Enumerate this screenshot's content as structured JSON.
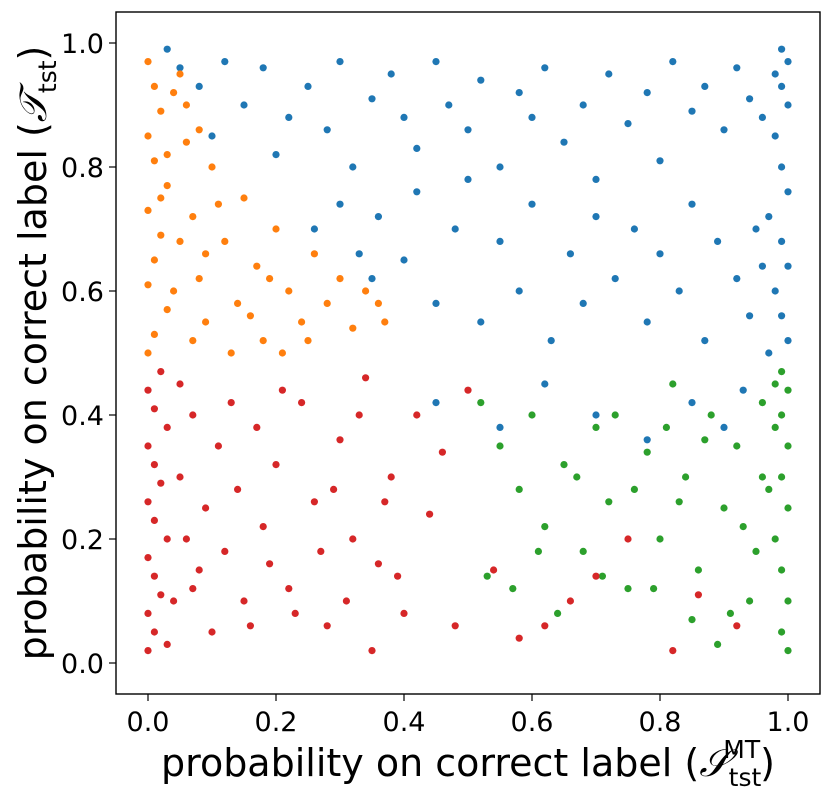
{
  "chart_data": {
    "type": "scatter",
    "title": "",
    "xlabel": {
      "text": "probability on correct label (",
      "symbol": "𝒮",
      "sub": "tst",
      "sup": "MT",
      "close": ")"
    },
    "ylabel": {
      "text": "probability on correct label (",
      "symbol": "𝒯",
      "sub": "tst",
      "close": ")"
    },
    "xlim": [
      -0.05,
      1.05
    ],
    "ylim": [
      -0.05,
      1.05
    ],
    "xticks": [
      0.0,
      0.2,
      0.4,
      0.6,
      0.8,
      1.0
    ],
    "yticks": [
      0.0,
      0.2,
      0.4,
      0.6,
      0.8,
      1.0
    ],
    "xtick_labels": [
      "0.0",
      "0.2",
      "0.4",
      "0.6",
      "0.8",
      "1.0"
    ],
    "ytick_labels": [
      "0.0",
      "0.2",
      "0.4",
      "0.6",
      "0.8",
      "1.0"
    ],
    "grid": false,
    "legend": "none",
    "series": [
      {
        "color": "#1f77b4",
        "points": [
          [
            0.03,
            0.99
          ],
          [
            0.05,
            0.96
          ],
          [
            0.08,
            0.93
          ],
          [
            0.12,
            0.97
          ],
          [
            0.15,
            0.9
          ],
          [
            0.1,
            0.85
          ],
          [
            0.18,
            0.96
          ],
          [
            0.2,
            0.82
          ],
          [
            0.22,
            0.88
          ],
          [
            0.25,
            0.93
          ],
          [
            0.28,
            0.86
          ],
          [
            0.3,
            0.97
          ],
          [
            0.32,
            0.8
          ],
          [
            0.35,
            0.91
          ],
          [
            0.38,
            0.95
          ],
          [
            0.4,
            0.88
          ],
          [
            0.42,
            0.83
          ],
          [
            0.45,
            0.97
          ],
          [
            0.47,
            0.9
          ],
          [
            0.5,
            0.86
          ],
          [
            0.52,
            0.94
          ],
          [
            0.55,
            0.8
          ],
          [
            0.58,
            0.92
          ],
          [
            0.6,
            0.88
          ],
          [
            0.62,
            0.96
          ],
          [
            0.65,
            0.84
          ],
          [
            0.68,
            0.9
          ],
          [
            0.7,
            0.78
          ],
          [
            0.72,
            0.95
          ],
          [
            0.75,
            0.87
          ],
          [
            0.78,
            0.92
          ],
          [
            0.8,
            0.81
          ],
          [
            0.82,
            0.97
          ],
          [
            0.85,
            0.89
          ],
          [
            0.87,
            0.93
          ],
          [
            0.9,
            0.86
          ],
          [
            0.92,
            0.96
          ],
          [
            0.94,
            0.91
          ],
          [
            0.96,
            0.88
          ],
          [
            0.98,
            0.95
          ],
          [
            0.99,
            0.99
          ],
          [
            1.0,
            0.97
          ],
          [
            0.99,
            0.93
          ],
          [
            1.0,
            0.9
          ],
          [
            0.98,
            0.85
          ],
          [
            0.99,
            0.8
          ],
          [
            1.0,
            0.76
          ],
          [
            0.97,
            0.72
          ],
          [
            0.99,
            0.68
          ],
          [
            1.0,
            0.64
          ],
          [
            0.98,
            0.6
          ],
          [
            0.99,
            0.56
          ],
          [
            1.0,
            0.52
          ],
          [
            0.97,
            0.5
          ],
          [
            0.35,
            0.62
          ],
          [
            0.4,
            0.65
          ],
          [
            0.45,
            0.58
          ],
          [
            0.48,
            0.7
          ],
          [
            0.52,
            0.55
          ],
          [
            0.55,
            0.68
          ],
          [
            0.58,
            0.6
          ],
          [
            0.6,
            0.74
          ],
          [
            0.63,
            0.52
          ],
          [
            0.66,
            0.66
          ],
          [
            0.68,
            0.58
          ],
          [
            0.7,
            0.72
          ],
          [
            0.73,
            0.62
          ],
          [
            0.76,
            0.7
          ],
          [
            0.78,
            0.55
          ],
          [
            0.8,
            0.66
          ],
          [
            0.83,
            0.6
          ],
          [
            0.85,
            0.74
          ],
          [
            0.87,
            0.52
          ],
          [
            0.89,
            0.68
          ],
          [
            0.92,
            0.62
          ],
          [
            0.94,
            0.56
          ],
          [
            0.95,
            0.7
          ],
          [
            0.96,
            0.64
          ],
          [
            0.45,
            0.42
          ],
          [
            0.55,
            0.38
          ],
          [
            0.62,
            0.45
          ],
          [
            0.7,
            0.4
          ],
          [
            0.78,
            0.36
          ],
          [
            0.85,
            0.42
          ],
          [
            0.9,
            0.38
          ],
          [
            0.93,
            0.44
          ],
          [
            0.36,
            0.72
          ],
          [
            0.42,
            0.76
          ],
          [
            0.5,
            0.78
          ],
          [
            0.26,
            0.7
          ],
          [
            0.3,
            0.74
          ],
          [
            0.33,
            0.66
          ]
        ]
      },
      {
        "color": "#ff7f0e",
        "points": [
          [
            0.0,
            0.97
          ],
          [
            0.01,
            0.93
          ],
          [
            0.02,
            0.89
          ],
          [
            0.0,
            0.85
          ],
          [
            0.01,
            0.81
          ],
          [
            0.03,
            0.77
          ],
          [
            0.0,
            0.73
          ],
          [
            0.02,
            0.69
          ],
          [
            0.01,
            0.65
          ],
          [
            0.0,
            0.61
          ],
          [
            0.03,
            0.57
          ],
          [
            0.01,
            0.53
          ],
          [
            0.0,
            0.5
          ],
          [
            0.05,
            0.95
          ],
          [
            0.06,
            0.84
          ],
          [
            0.07,
            0.72
          ],
          [
            0.08,
            0.62
          ],
          [
            0.09,
            0.55
          ],
          [
            0.1,
            0.8
          ],
          [
            0.12,
            0.68
          ],
          [
            0.14,
            0.58
          ],
          [
            0.15,
            0.75
          ],
          [
            0.17,
            0.64
          ],
          [
            0.18,
            0.52
          ],
          [
            0.2,
            0.7
          ],
          [
            0.22,
            0.6
          ],
          [
            0.24,
            0.55
          ],
          [
            0.26,
            0.66
          ],
          [
            0.28,
            0.58
          ],
          [
            0.3,
            0.62
          ],
          [
            0.32,
            0.54
          ],
          [
            0.34,
            0.6
          ],
          [
            0.36,
            0.58
          ],
          [
            0.37,
            0.55
          ],
          [
            0.04,
            0.6
          ],
          [
            0.05,
            0.68
          ],
          [
            0.03,
            0.82
          ],
          [
            0.06,
            0.9
          ],
          [
            0.08,
            0.86
          ],
          [
            0.11,
            0.74
          ],
          [
            0.13,
            0.5
          ],
          [
            0.16,
            0.56
          ],
          [
            0.19,
            0.62
          ],
          [
            0.21,
            0.5
          ],
          [
            0.25,
            0.52
          ],
          [
            0.07,
            0.52
          ],
          [
            0.09,
            0.66
          ],
          [
            0.02,
            0.75
          ],
          [
            0.04,
            0.92
          ]
        ]
      },
      {
        "color": "#2ca02c",
        "points": [
          [
            0.52,
            0.42
          ],
          [
            0.55,
            0.35
          ],
          [
            0.58,
            0.28
          ],
          [
            0.6,
            0.4
          ],
          [
            0.62,
            0.22
          ],
          [
            0.65,
            0.32
          ],
          [
            0.68,
            0.18
          ],
          [
            0.7,
            0.38
          ],
          [
            0.72,
            0.26
          ],
          [
            0.75,
            0.12
          ],
          [
            0.78,
            0.34
          ],
          [
            0.8,
            0.2
          ],
          [
            0.82,
            0.45
          ],
          [
            0.84,
            0.3
          ],
          [
            0.86,
            0.15
          ],
          [
            0.88,
            0.4
          ],
          [
            0.9,
            0.25
          ],
          [
            0.92,
            0.35
          ],
          [
            0.94,
            0.1
          ],
          [
            0.96,
            0.3
          ],
          [
            0.98,
            0.45
          ],
          [
            0.99,
            0.4
          ],
          [
            1.0,
            0.35
          ],
          [
            0.99,
            0.3
          ],
          [
            1.0,
            0.25
          ],
          [
            0.98,
            0.2
          ],
          [
            0.99,
            0.15
          ],
          [
            1.0,
            0.1
          ],
          [
            0.99,
            0.05
          ],
          [
            1.0,
            0.02
          ],
          [
            0.98,
            0.38
          ],
          [
            0.97,
            0.28
          ],
          [
            0.99,
            0.47
          ],
          [
            1.0,
            0.44
          ],
          [
            0.96,
            0.42
          ],
          [
            0.95,
            0.18
          ],
          [
            0.93,
            0.22
          ],
          [
            0.91,
            0.08
          ],
          [
            0.89,
            0.03
          ],
          [
            0.87,
            0.36
          ],
          [
            0.85,
            0.07
          ],
          [
            0.83,
            0.26
          ],
          [
            0.81,
            0.38
          ],
          [
            0.79,
            0.12
          ],
          [
            0.76,
            0.28
          ],
          [
            0.73,
            0.4
          ],
          [
            0.71,
            0.14
          ],
          [
            0.67,
            0.3
          ],
          [
            0.64,
            0.08
          ],
          [
            0.61,
            0.18
          ],
          [
            0.57,
            0.12
          ],
          [
            0.53,
            0.14
          ]
        ]
      },
      {
        "color": "#d62728",
        "points": [
          [
            0.0,
            0.02
          ],
          [
            0.01,
            0.05
          ],
          [
            0.0,
            0.08
          ],
          [
            0.02,
            0.11
          ],
          [
            0.01,
            0.14
          ],
          [
            0.0,
            0.17
          ],
          [
            0.03,
            0.2
          ],
          [
            0.01,
            0.23
          ],
          [
            0.0,
            0.26
          ],
          [
            0.02,
            0.29
          ],
          [
            0.01,
            0.32
          ],
          [
            0.0,
            0.35
          ],
          [
            0.03,
            0.38
          ],
          [
            0.01,
            0.41
          ],
          [
            0.0,
            0.44
          ],
          [
            0.02,
            0.47
          ],
          [
            0.04,
            0.1
          ],
          [
            0.05,
            0.3
          ],
          [
            0.06,
            0.2
          ],
          [
            0.07,
            0.4
          ],
          [
            0.08,
            0.15
          ],
          [
            0.09,
            0.25
          ],
          [
            0.1,
            0.05
          ],
          [
            0.11,
            0.35
          ],
          [
            0.12,
            0.18
          ],
          [
            0.14,
            0.28
          ],
          [
            0.15,
            0.1
          ],
          [
            0.17,
            0.38
          ],
          [
            0.18,
            0.22
          ],
          [
            0.2,
            0.32
          ],
          [
            0.22,
            0.12
          ],
          [
            0.24,
            0.42
          ],
          [
            0.26,
            0.26
          ],
          [
            0.28,
            0.06
          ],
          [
            0.3,
            0.36
          ],
          [
            0.32,
            0.2
          ],
          [
            0.34,
            0.46
          ],
          [
            0.36,
            0.16
          ],
          [
            0.38,
            0.3
          ],
          [
            0.4,
            0.08
          ],
          [
            0.42,
            0.4
          ],
          [
            0.44,
            0.24
          ],
          [
            0.46,
            0.34
          ],
          [
            0.48,
            0.06
          ],
          [
            0.5,
            0.44
          ],
          [
            0.54,
            0.15
          ],
          [
            0.58,
            0.04
          ],
          [
            0.62,
            0.06
          ],
          [
            0.66,
            0.1
          ],
          [
            0.7,
            0.14
          ],
          [
            0.75,
            0.2
          ],
          [
            0.82,
            0.02
          ],
          [
            0.86,
            0.11
          ],
          [
            0.92,
            0.06
          ],
          [
            0.03,
            0.03
          ],
          [
            0.05,
            0.45
          ],
          [
            0.07,
            0.12
          ],
          [
            0.13,
            0.42
          ],
          [
            0.16,
            0.06
          ],
          [
            0.19,
            0.16
          ],
          [
            0.21,
            0.44
          ],
          [
            0.23,
            0.08
          ],
          [
            0.27,
            0.18
          ],
          [
            0.29,
            0.28
          ],
          [
            0.31,
            0.1
          ],
          [
            0.33,
            0.4
          ],
          [
            0.35,
            0.02
          ],
          [
            0.37,
            0.26
          ],
          [
            0.39,
            0.14
          ]
        ]
      }
    ]
  }
}
